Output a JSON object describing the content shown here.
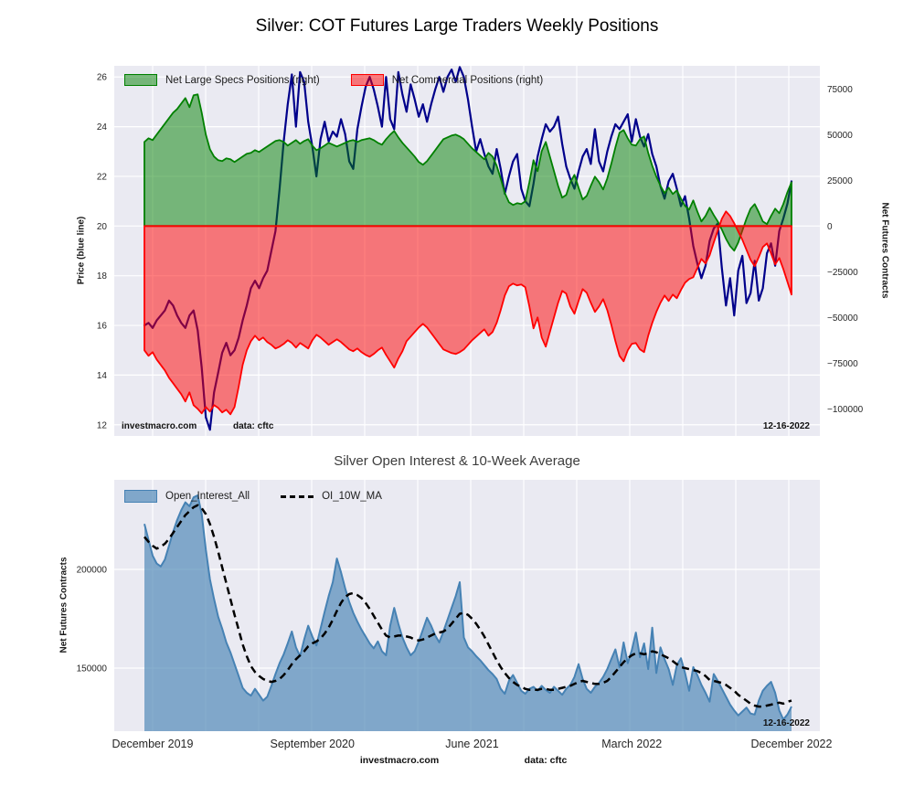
{
  "chart_data": [
    {
      "type": "area+line",
      "title": "Silver: COT Futures Large Traders Weekly Positions",
      "left_axis": {
        "label": "Price (blue line)",
        "ticks": [
          26,
          24,
          22,
          20,
          18,
          16,
          14,
          12
        ],
        "range": [
          11.55,
          26.45
        ]
      },
      "right_axis": {
        "label": "Net Futures Contracts",
        "tick_labels": [
          "75000",
          "50000",
          "25000",
          "0",
          "−25000",
          "−50000",
          "−75000",
          "−100000"
        ],
        "tick_values": [
          75000,
          50000,
          25000,
          0,
          -25000,
          -50000,
          -75000,
          -100000
        ],
        "range": [
          -114850,
          87650
        ]
      },
      "x_ticks": {
        "weeks": [
          2,
          41,
          80,
          119,
          158
        ],
        "labels": [
          "December 2019",
          "September 2020",
          "June 2021",
          "March 2022",
          "December 2022"
        ],
        "show_labels": false
      },
      "legend": [
        {
          "label": "Net Large Specs Positions (right)",
          "swatch": "green-patch"
        },
        {
          "label": "Net Commercial Positions (right)",
          "swatch": "red-patch"
        }
      ],
      "annotations": {
        "source": "investmacro.com",
        "data_note": "data: cftc",
        "date": "12-16-2022"
      },
      "colors": {
        "price_line": "#00008b",
        "specs_fill": "rgba(0,128,0,0.5)",
        "specs_edge": "#008000",
        "comm_fill": "rgba(255,0,0,0.5)",
        "comm_edge": "#ff0000",
        "plot_bg": "#eaeaf2",
        "grid": "#ffffff"
      },
      "series": {
        "price": [
          16.0,
          16.1,
          15.9,
          16.2,
          16.4,
          16.6,
          17.0,
          16.8,
          16.4,
          16.1,
          15.9,
          16.4,
          16.6,
          15.8,
          14.3,
          12.3,
          11.8,
          13.3,
          14.1,
          14.9,
          15.3,
          14.8,
          15.0,
          15.5,
          16.2,
          16.8,
          17.5,
          17.8,
          17.5,
          17.9,
          18.2,
          19.0,
          19.8,
          21.5,
          23.4,
          24.9,
          26.1,
          24.0,
          26.2,
          25.8,
          24.2,
          23.2,
          22.0,
          23.5,
          24.2,
          23.4,
          23.8,
          23.6,
          24.3,
          23.7,
          22.6,
          22.3,
          23.9,
          24.8,
          25.6,
          26.0,
          25.5,
          24.8,
          24.0,
          26.0,
          24.3,
          23.9,
          26.2,
          25.3,
          24.6,
          25.7,
          25.1,
          24.4,
          24.9,
          24.2,
          24.9,
          25.5,
          26.0,
          25.4,
          26.0,
          26.3,
          25.8,
          26.4,
          26.0,
          25.1,
          24.0,
          23.0,
          23.5,
          22.9,
          22.4,
          22.1,
          23.1,
          22.3,
          21.3,
          22.0,
          22.6,
          22.9,
          21.5,
          21.0,
          20.8,
          21.7,
          22.8,
          23.5,
          24.1,
          23.8,
          24.0,
          24.4,
          23.3,
          22.4,
          21.9,
          21.5,
          22.2,
          22.8,
          23.1,
          22.5,
          23.9,
          22.6,
          22.2,
          23.0,
          23.6,
          24.1,
          23.9,
          24.2,
          24.5,
          23.4,
          24.3,
          23.6,
          23.2,
          23.7,
          22.9,
          22.4,
          21.6,
          21.1,
          21.8,
          22.1,
          21.5,
          20.8,
          21.2,
          20.3,
          19.2,
          18.5,
          17.9,
          18.4,
          19.4,
          19.9,
          20.1,
          18.3,
          16.8,
          17.9,
          16.4,
          18.2,
          18.8,
          16.9,
          17.3,
          18.6,
          17.0,
          17.5,
          18.9,
          19.3,
          18.4,
          19.8,
          20.3,
          20.9,
          21.8
        ],
        "net_large_specs": [
          46000,
          48000,
          47000,
          50000,
          53000,
          56000,
          59000,
          62000,
          64000,
          67000,
          70000,
          65000,
          71500,
          72000,
          62000,
          50000,
          42000,
          38000,
          36000,
          35500,
          37000,
          36500,
          35000,
          36500,
          38000,
          39500,
          40000,
          41500,
          40500,
          42000,
          43500,
          45000,
          46500,
          47000,
          46000,
          44000,
          45500,
          47000,
          45000,
          46500,
          47500,
          44000,
          41500,
          42500,
          44000,
          45500,
          44500,
          43500,
          44500,
          45500,
          46500,
          47000,
          46000,
          47000,
          47500,
          48000,
          47000,
          45500,
          44500,
          47500,
          50000,
          52000,
          48500,
          45500,
          43000,
          40500,
          38000,
          35000,
          33500,
          35500,
          38500,
          41500,
          44500,
          47500,
          48500,
          49500,
          50000,
          49000,
          47500,
          45000,
          42500,
          40500,
          38500,
          36500,
          40000,
          38000,
          33000,
          26000,
          18000,
          13000,
          11500,
          12500,
          12000,
          13500,
          24000,
          36000,
          30000,
          41000,
          46000,
          38000,
          30000,
          22000,
          15500,
          17000,
          24000,
          28000,
          21000,
          14500,
          16500,
          22000,
          27000,
          24000,
          20000,
          26000,
          34000,
          43000,
          51000,
          52500,
          48000,
          44500,
          44000,
          47500,
          49000,
          40000,
          33000,
          27000,
          22000,
          18000,
          21000,
          17500,
          19500,
          15000,
          11000,
          9000,
          14000,
          8000,
          2500,
          5500,
          10000,
          6000,
          2500,
          -2000,
          -7000,
          -11000,
          -13500,
          -9000,
          -2500,
          4000,
          9500,
          12000,
          7500,
          2500,
          1000,
          5500,
          9500,
          7000,
          12000,
          18500,
          24000
        ],
        "net_commercials": [
          -68000,
          -71000,
          -69000,
          -73000,
          -76000,
          -79000,
          -83000,
          -86000,
          -89000,
          -92000,
          -96000,
          -91000,
          -98000,
          -100000,
          -102500,
          -99000,
          -101500,
          -98000,
          -99500,
          -102000,
          -100500,
          -103000,
          -99000,
          -88000,
          -76000,
          -68000,
          -63000,
          -60000,
          -62500,
          -61000,
          -63500,
          -65000,
          -67000,
          -66000,
          -64500,
          -62500,
          -64000,
          -66500,
          -64000,
          -65500,
          -67000,
          -62500,
          -59500,
          -61000,
          -63000,
          -65000,
          -63500,
          -62000,
          -63500,
          -65500,
          -67500,
          -68500,
          -67000,
          -69000,
          -70500,
          -71500,
          -70000,
          -68000,
          -66500,
          -70500,
          -74000,
          -77500,
          -72500,
          -68500,
          -63000,
          -60500,
          -58000,
          -55500,
          -53500,
          -55500,
          -58500,
          -61500,
          -64500,
          -67500,
          -68500,
          -69500,
          -70000,
          -69000,
          -67500,
          -65000,
          -62500,
          -60500,
          -58500,
          -56500,
          -60000,
          -58000,
          -53000,
          -46000,
          -38000,
          -33000,
          -31500,
          -32500,
          -32000,
          -33500,
          -44000,
          -56000,
          -50000,
          -61000,
          -66000,
          -58000,
          -50000,
          -42000,
          -35500,
          -37000,
          -44000,
          -48000,
          -41000,
          -34500,
          -36500,
          -42000,
          -47000,
          -44000,
          -40000,
          -46000,
          -54000,
          -63000,
          -71000,
          -74000,
          -68000,
          -64500,
          -64000,
          -67500,
          -69000,
          -60000,
          -53000,
          -47000,
          -42000,
          -38000,
          -41000,
          -37500,
          -39500,
          -35000,
          -31000,
          -29000,
          -28000,
          -23000,
          -18000,
          -20500,
          -16000,
          -9000,
          -2500,
          4000,
          8000,
          5500,
          1500,
          -3000,
          -7500,
          -13000,
          -18500,
          -22000,
          -17000,
          -11500,
          -9500,
          -15000,
          -21000,
          -17500,
          -23500,
          -30500,
          -37500
        ]
      }
    },
    {
      "type": "area+line",
      "title": "Silver Open Interest & 10-Week Average",
      "left_axis": {
        "label": "Net Futures Contracts",
        "tick_labels": [
          "200000",
          "150000"
        ],
        "tick_values": [
          200000,
          150000
        ],
        "range": [
          118000,
          245500
        ]
      },
      "x_ticks": {
        "weeks": [
          2,
          41,
          80,
          119,
          158
        ],
        "labels": [
          "December 2019",
          "September 2020",
          "June 2021",
          "March 2022",
          "December 2022"
        ],
        "show_labels": true
      },
      "legend": [
        {
          "label": "Open_Interest_All",
          "swatch": "steelblue-patch"
        },
        {
          "label": "OI_10W_MA",
          "swatch": "black-dashed-line"
        }
      ],
      "annotations": {
        "source": "investmacro.com",
        "data_note": "data: cftc",
        "date": "12-16-2022"
      },
      "colors": {
        "oi_fill": "rgba(70,130,180,0.65)",
        "oi_edge": "#4682b4",
        "ma_line": "#000000",
        "plot_bg": "#eaeaf2",
        "grid": "#ffffff"
      },
      "series": {
        "open_interest_all": [
          223000,
          215000,
          207000,
          203000,
          201500,
          205000,
          212000,
          219000,
          225000,
          230000,
          234000,
          232000,
          236500,
          237500,
          228000,
          210000,
          195000,
          185000,
          176000,
          170000,
          163000,
          158000,
          152000,
          146000,
          140000,
          137500,
          136000,
          139500,
          136500,
          133500,
          135500,
          141000,
          147000,
          152500,
          157000,
          162500,
          168500,
          160500,
          156000,
          164500,
          171500,
          166000,
          161500,
          170000,
          178500,
          186500,
          193500,
          205500,
          198500,
          190500,
          183500,
          178000,
          173500,
          169500,
          166000,
          162500,
          160000,
          163500,
          158500,
          156500,
          171500,
          180500,
          172500,
          165500,
          160500,
          156500,
          158500,
          163500,
          169500,
          175500,
          171500,
          166500,
          163000,
          168500,
          174500,
          180500,
          186500,
          193500,
          165500,
          160500,
          158500,
          156000,
          154000,
          151500,
          149000,
          147000,
          144500,
          139500,
          137000,
          143500,
          146500,
          142500,
          138500,
          137000,
          139500,
          140500,
          138500,
          141000,
          139000,
          137500,
          140500,
          138500,
          136500,
          139500,
          141500,
          145500,
          152000,
          144500,
          139500,
          137500,
          140500,
          142500,
          145500,
          149500,
          154500,
          159500,
          150500,
          163000,
          152500,
          159000,
          168000,
          155500,
          162500,
          149500,
          170500,
          147500,
          160500,
          154500,
          149500,
          141500,
          151500,
          155000,
          147500,
          138500,
          150500,
          146500,
          141500,
          137500,
          133000,
          147000,
          143500,
          139500,
          135500,
          131500,
          128500,
          126000,
          128000,
          130000,
          127000,
          126500,
          133500,
          138500,
          141000,
          143000,
          137500,
          128500,
          124000,
          126500,
          130500
        ],
        "oi_10w_ma": [
          216500,
          214000,
          212000,
          210500,
          211500,
          213000,
          215500,
          218500,
          221500,
          224500,
          227500,
          229500,
          231500,
          232500,
          231000,
          228000,
          223000,
          216500,
          209000,
          201000,
          193000,
          185000,
          177000,
          169500,
          162000,
          156000,
          151000,
          148000,
          146000,
          144500,
          143500,
          143000,
          143500,
          144500,
          146500,
          149000,
          152000,
          154500,
          156500,
          158500,
          161000,
          162500,
          163500,
          165000,
          167500,
          170500,
          174500,
          179000,
          183000,
          186000,
          187500,
          188000,
          187000,
          185500,
          183000,
          180000,
          176500,
          173000,
          169500,
          166500,
          165500,
          166000,
          166500,
          166500,
          166000,
          165500,
          164500,
          164000,
          164500,
          165500,
          166500,
          167500,
          168000,
          168500,
          170000,
          172500,
          175000,
          177500,
          178000,
          177000,
          175000,
          172500,
          169500,
          166000,
          162000,
          158000,
          154000,
          150500,
          147500,
          145000,
          143000,
          141500,
          140500,
          139500,
          139000,
          139000,
          139000,
          139500,
          139500,
          139000,
          139000,
          139500,
          140000,
          140500,
          141000,
          142000,
          143000,
          143500,
          143000,
          142500,
          142000,
          142000,
          142500,
          143500,
          145500,
          148000,
          150500,
          153000,
          155000,
          156500,
          157500,
          157500,
          157000,
          157500,
          158500,
          158000,
          157000,
          156000,
          155000,
          153500,
          152000,
          150500,
          150000,
          149500,
          149000,
          148500,
          147500,
          146000,
          144000,
          143500,
          143000,
          142500,
          141500,
          140000,
          138500,
          136500,
          135000,
          133500,
          132000,
          131000,
          130500,
          130500,
          131000,
          131500,
          132000,
          132500,
          132000,
          133000,
          133500
        ]
      }
    }
  ]
}
